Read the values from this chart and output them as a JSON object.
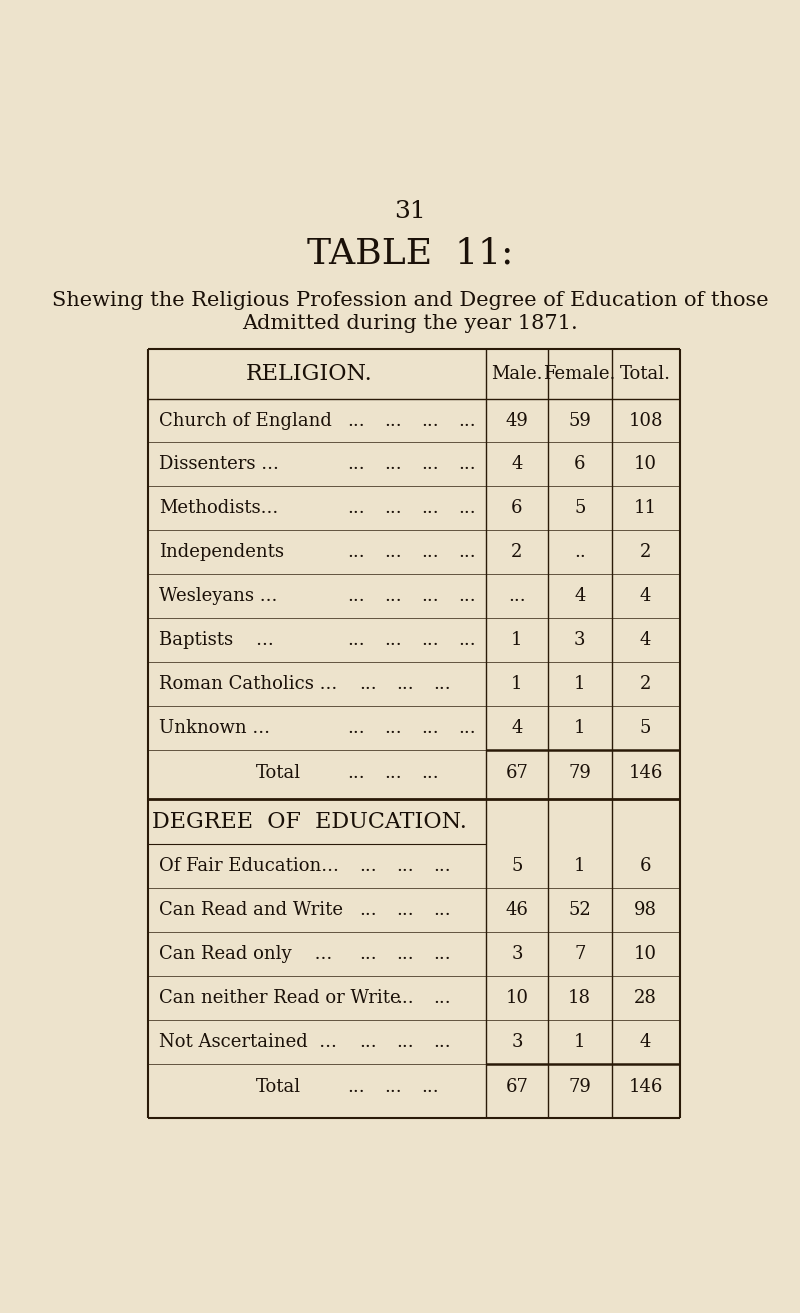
{
  "page_number": "31",
  "table_title": "TABLE  11:",
  "subtitle1": "Shewing the Religious Profession and Degree of Education of those",
  "subtitle2": "Admitted during the year 1871.",
  "background_color": "#ede3cc",
  "section1_header": "RELIGION.",
  "section2_header": "DEGREE  OF  EDUCATION.",
  "col_headers": [
    "Male.",
    "Female.",
    "Total."
  ],
  "religion_rows": [
    {
      "label": "Church of England",
      "dots1": "...",
      "dots2": "...",
      "dots3": "...",
      "male": "49",
      "female": "59",
      "total": "108"
    },
    {
      "label": "Dissenters ...",
      "dots1": "...",
      "dots2": "...",
      "dots3": "...",
      "dots4": "...",
      "male": "4",
      "female": "6",
      "total": "10"
    },
    {
      "label": "Methodists...",
      "dots1": "...",
      "dots2": "...",
      "dots3": "...",
      "dots4": "...",
      "male": "6",
      "female": "5",
      "total": "11"
    },
    {
      "label": "Independents",
      "dots1": "...",
      "dots2": "...",
      "dots3": "...",
      "dots4": "...",
      "male": "2",
      "female": "..",
      "total": "2"
    },
    {
      "label": "Wesleyans ...",
      "dots1": "...",
      "dots2": "...",
      "dots3": "...",
      "dots4": "...",
      "male": "...",
      "female": "4",
      "total": "4"
    },
    {
      "label": "Baptists    ...",
      "dots1": "...",
      "dots2": "...",
      "dots3": "...",
      "dots4": "...",
      "male": "1",
      "female": "3",
      "total": "4"
    },
    {
      "label": "Roman Catholics ...",
      "dots1": "...",
      "dots2": "...",
      "dots3": "...",
      "male": "1",
      "female": "1",
      "total": "2"
    },
    {
      "label": "Unknown ...",
      "dots1": "...",
      "dots2": "...",
      "dots3": "...",
      "dots4": "...",
      "male": "4",
      "female": "1",
      "total": "5"
    }
  ],
  "religion_total": {
    "male": "67",
    "female": "79",
    "total": "146"
  },
  "education_rows": [
    {
      "label": "Of Fair Education...",
      "dots1": "...",
      "dots2": "...",
      "dots3": "...",
      "male": "5",
      "female": "1",
      "total": "6"
    },
    {
      "label": "Can Read and Write",
      "dots1": "...",
      "dots2": "...",
      "dots3": "...",
      "male": "46",
      "female": "52",
      "total": "98"
    },
    {
      "label": "Can Read only    ...",
      "dots1": "...",
      "dots2": "...",
      "dots3": "...",
      "male": "3",
      "female": "7",
      "total": "10"
    },
    {
      "label": "Can neither Read or Write",
      "dots1": "...",
      "dots2": "...",
      "male": "10",
      "female": "18",
      "total": "28"
    },
    {
      "label": "Not Ascertained  ...",
      "dots1": "...",
      "dots2": "...",
      "dots3": "...",
      "male": "3",
      "female": "1",
      "total": "4"
    }
  ],
  "education_total": {
    "male": "67",
    "female": "79",
    "total": "146"
  },
  "font_color": "#1a1008",
  "line_color": "#2a1a08",
  "title_fontsize": 26,
  "subtitle_fontsize": 15,
  "header_fontsize": 15,
  "body_fontsize": 13,
  "page_num_fontsize": 18
}
